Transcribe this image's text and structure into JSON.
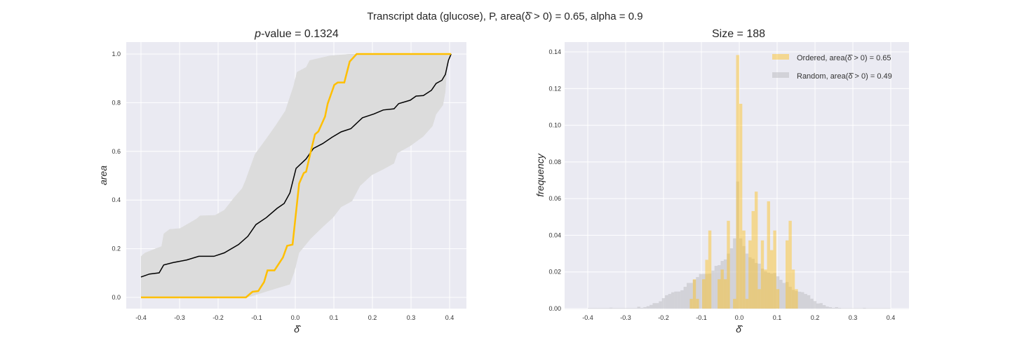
{
  "suptitle": "Transcript data (glucose), P, area(δ̂ > 0) = 0.65, alpha = 0.9",
  "chart_data": [
    {
      "type": "line",
      "title_italic": "p",
      "title_rest": "-value = 0.1324",
      "xlabel": "δ̂",
      "ylabel": "area",
      "xlim": [
        -0.44,
        0.44
      ],
      "ylim": [
        -0.05,
        1.05
      ],
      "xticks": [
        "-0.4",
        "-0.3",
        "-0.2",
        "-0.1",
        "0.0",
        "0.1",
        "0.2",
        "0.3",
        "0.4"
      ],
      "yticks": [
        "0.0",
        "0.2",
        "0.4",
        "0.6",
        "0.8",
        "1.0"
      ],
      "grid": true,
      "colors": {
        "background": "#EAEAF2",
        "band": "#DCDCDC",
        "ordered": "#FFBF00",
        "random_mean": "#000000"
      },
      "band_upper": [
        [
          -0.4,
          0.169
        ],
        [
          -0.39,
          0.183
        ],
        [
          -0.36,
          0.202
        ],
        [
          -0.347,
          0.21
        ],
        [
          -0.341,
          0.262
        ],
        [
          -0.326,
          0.28
        ],
        [
          -0.299,
          0.284
        ],
        [
          -0.256,
          0.323
        ],
        [
          -0.247,
          0.336
        ],
        [
          -0.208,
          0.338
        ],
        [
          -0.184,
          0.359
        ],
        [
          -0.159,
          0.41
        ],
        [
          -0.138,
          0.448
        ],
        [
          -0.129,
          0.482
        ],
        [
          -0.105,
          0.588
        ],
        [
          -0.078,
          0.646
        ],
        [
          -0.05,
          0.709
        ],
        [
          -0.026,
          0.767
        ],
        [
          -0.005,
          0.868
        ],
        [
          0.004,
          0.926
        ],
        [
          0.028,
          0.946
        ],
        [
          0.037,
          0.974
        ],
        [
          0.089,
          0.993
        ],
        [
          0.138,
          1.0
        ],
        [
          0.404,
          1.0
        ]
      ],
      "band_lower": [
        [
          -0.4,
          0.0
        ],
        [
          -0.123,
          0.0
        ],
        [
          -0.075,
          0.024
        ],
        [
          -0.044,
          0.039
        ],
        [
          -0.014,
          0.053
        ],
        [
          -0.002,
          0.106
        ],
        [
          0.01,
          0.183
        ],
        [
          0.04,
          0.241
        ],
        [
          0.071,
          0.289
        ],
        [
          0.098,
          0.328
        ],
        [
          0.119,
          0.371
        ],
        [
          0.147,
          0.395
        ],
        [
          0.168,
          0.458
        ],
        [
          0.198,
          0.502
        ],
        [
          0.228,
          0.526
        ],
        [
          0.256,
          0.55
        ],
        [
          0.265,
          0.593
        ],
        [
          0.298,
          0.622
        ],
        [
          0.332,
          0.661
        ],
        [
          0.356,
          0.704
        ],
        [
          0.365,
          0.752
        ],
        [
          0.383,
          0.79
        ],
        [
          0.389,
          0.843
        ],
        [
          0.395,
          0.974
        ],
        [
          0.404,
          1.0
        ]
      ],
      "series": [
        {
          "key": "random_mean",
          "points": [
            [
              -0.4,
              0.084
            ],
            [
              -0.378,
              0.096
            ],
            [
              -0.353,
              0.101
            ],
            [
              -0.341,
              0.133
            ],
            [
              -0.317,
              0.143
            ],
            [
              -0.281,
              0.154
            ],
            [
              -0.25,
              0.169
            ],
            [
              -0.211,
              0.169
            ],
            [
              -0.184,
              0.183
            ],
            [
              -0.147,
              0.217
            ],
            [
              -0.123,
              0.251
            ],
            [
              -0.102,
              0.299
            ],
            [
              -0.075,
              0.328
            ],
            [
              -0.047,
              0.366
            ],
            [
              -0.029,
              0.386
            ],
            [
              -0.014,
              0.429
            ],
            [
              0.002,
              0.53
            ],
            [
              0.028,
              0.569
            ],
            [
              0.047,
              0.612
            ],
            [
              0.071,
              0.632
            ],
            [
              0.095,
              0.658
            ],
            [
              0.119,
              0.68
            ],
            [
              0.144,
              0.693
            ],
            [
              0.174,
              0.738
            ],
            [
              0.204,
              0.754
            ],
            [
              0.228,
              0.77
            ],
            [
              0.256,
              0.775
            ],
            [
              0.268,
              0.796
            ],
            [
              0.298,
              0.81
            ],
            [
              0.313,
              0.827
            ],
            [
              0.332,
              0.829
            ],
            [
              0.353,
              0.851
            ],
            [
              0.365,
              0.879
            ],
            [
              0.38,
              0.892
            ],
            [
              0.389,
              0.916
            ],
            [
              0.397,
              0.974
            ],
            [
              0.404,
              1.0
            ]
          ]
        },
        {
          "key": "ordered",
          "points": [
            [
              -0.4,
              0.0
            ],
            [
              -0.128,
              0.0
            ],
            [
              -0.111,
              0.023
            ],
            [
              -0.096,
              0.026
            ],
            [
              -0.081,
              0.063
            ],
            [
              -0.072,
              0.111
            ],
            [
              -0.054,
              0.111
            ],
            [
              -0.032,
              0.164
            ],
            [
              -0.021,
              0.212
            ],
            [
              -0.007,
              0.217
            ],
            [
              0.01,
              0.468
            ],
            [
              0.022,
              0.511
            ],
            [
              0.028,
              0.516
            ],
            [
              0.04,
              0.598
            ],
            [
              0.051,
              0.67
            ],
            [
              0.06,
              0.682
            ],
            [
              0.077,
              0.743
            ],
            [
              0.084,
              0.796
            ],
            [
              0.101,
              0.873
            ],
            [
              0.11,
              0.883
            ],
            [
              0.127,
              0.883
            ],
            [
              0.141,
              0.969
            ],
            [
              0.159,
              1.0
            ],
            [
              0.404,
              1.0
            ]
          ]
        }
      ]
    },
    {
      "type": "bar",
      "title": "Size = 188",
      "xlabel": "δ̂",
      "ylabel": "frequency",
      "xlim": [
        -0.44,
        0.44
      ],
      "ylim": [
        0,
        0.145
      ],
      "xticks": [
        "-0.4",
        "-0.3",
        "-0.2",
        "-0.1",
        "0.0",
        "0.1",
        "0.2",
        "0.3",
        "0.4"
      ],
      "yticks": [
        "0.00",
        "0.02",
        "0.04",
        "0.06",
        "0.08",
        "0.10",
        "0.12",
        "0.14"
      ],
      "grid": true,
      "legend_position": "top-right",
      "bin_start": -0.4,
      "bin_width": 0.00816,
      "series": [
        {
          "name": "Random, area(δ̂ > 0) = 0.49",
          "color": "#BDBDC2",
          "values": [
            0.0003,
            0.0003,
            0.0003,
            0.0003,
            0.0003,
            0.0003,
            0.0003,
            0.0005,
            0.0003,
            0.0003,
            0.0003,
            0.0003,
            0.0003,
            0.0003,
            0.0003,
            0.0003,
            0.001,
            0.0004,
            0.0008,
            0.0013,
            0.002,
            0.003,
            0.003,
            0.004,
            0.0057,
            0.0073,
            0.008,
            0.0089,
            0.0093,
            0.0093,
            0.01,
            0.0119,
            0.014,
            0.014,
            0.0157,
            0.0172,
            0.0189,
            0.0189,
            0.0189,
            0.019,
            0.0207,
            0.0233,
            0.0237,
            0.026,
            0.0268,
            0.03,
            0.0329,
            0.0383,
            0.0693,
            0.0383,
            0.0341,
            0.03,
            0.028,
            0.0272,
            0.0249,
            0.0245,
            0.0218,
            0.0203,
            0.0196,
            0.0191,
            0.0194,
            0.0176,
            0.0157,
            0.014,
            0.0145,
            0.0119,
            0.0102,
            0.0096,
            0.0092,
            0.009,
            0.008,
            0.0073,
            0.0054,
            0.0041,
            0.0028,
            0.003,
            0.0019,
            0.0011,
            0.0008,
            0.0004,
            0.0008,
            0.0004,
            0.0002,
            0.0002,
            0.0002,
            0.0002,
            0.0002,
            0.0002,
            0.0002,
            0.0004,
            0.0002,
            0.0002,
            0.0002,
            0.0002,
            0.0002,
            0.0002,
            0.0002,
            0.0002
          ]
        },
        {
          "name": "Ordered, area(δ̂ > 0) = 0.65",
          "color": "#FFC21A",
          "values": [
            0,
            0,
            0,
            0,
            0,
            0,
            0,
            0,
            0,
            0,
            0,
            0,
            0,
            0,
            0,
            0,
            0,
            0,
            0,
            0,
            0,
            0,
            0,
            0,
            0,
            0,
            0,
            0,
            0,
            0,
            0,
            0,
            0,
            0.0053,
            0.016,
            0.0053,
            0,
            0.016,
            0.0266,
            0.0426,
            0,
            0,
            0.016,
            0.0213,
            0.016,
            0.0479,
            0,
            0.0053,
            0.1383,
            0.1117,
            0.0426,
            0.0053,
            0.0372,
            0.0532,
            0.0638,
            0.0106,
            0.0372,
            0.0213,
            0.0585,
            0.0319,
            0.0426,
            0.0106,
            0,
            0,
            0.0372,
            0.0479,
            0.0213,
            0.0106,
            0,
            0,
            0,
            0,
            0,
            0,
            0,
            0,
            0,
            0,
            0,
            0,
            0,
            0,
            0,
            0,
            0,
            0,
            0,
            0,
            0,
            0,
            0,
            0,
            0,
            0,
            0,
            0,
            0,
            0
          ]
        }
      ]
    }
  ]
}
